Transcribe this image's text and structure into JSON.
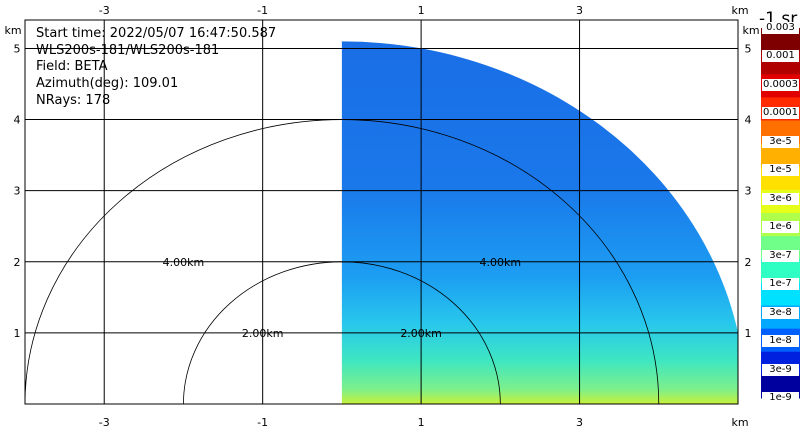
{
  "info": {
    "start_time": "Start time: 2022/05/07 16:47:50.587",
    "instrument": "WLS200s-181/WLS200s-181",
    "field": "Field: BETA",
    "azimuth": "Azimuth(deg): 109.01",
    "nrays": "NRays: 178"
  },
  "units_title": "-1 sr",
  "axis": {
    "x_unit": "km",
    "y_unit": "km",
    "x_ticks": [
      "-3",
      "-1",
      "1",
      "3"
    ],
    "y_ticks": [
      "1",
      "2",
      "3",
      "4",
      "5"
    ]
  },
  "range_rings": [
    "2.00km",
    "4.00km"
  ],
  "colorbar": {
    "labels": [
      "0.003",
      "0.001",
      "0.0003",
      "0.0001",
      "3e-5",
      "1e-5",
      "3e-6",
      "1e-6",
      "3e-7",
      "1e-7",
      "3e-8",
      "1e-8",
      "3e-9",
      "1e-9"
    ],
    "colors": [
      "#7f0000",
      "#b00000",
      "#e00000",
      "#ff2a00",
      "#ff7000",
      "#ffb000",
      "#ffe000",
      "#e6ff1a",
      "#b0ff4a",
      "#70ff88",
      "#30ffc4",
      "#00e0ff",
      "#00a8ff",
      "#0060ff",
      "#0020e0",
      "#00009f"
    ]
  },
  "chart_data": {
    "type": "heatmap",
    "title": "",
    "xlabel": "km",
    "ylabel": "km",
    "xlim": [
      -4.0,
      5.0
    ],
    "ylim": [
      0.0,
      5.4
    ],
    "sector": {
      "x_min": 0.0,
      "max_range_km": 5.1
    }
  }
}
